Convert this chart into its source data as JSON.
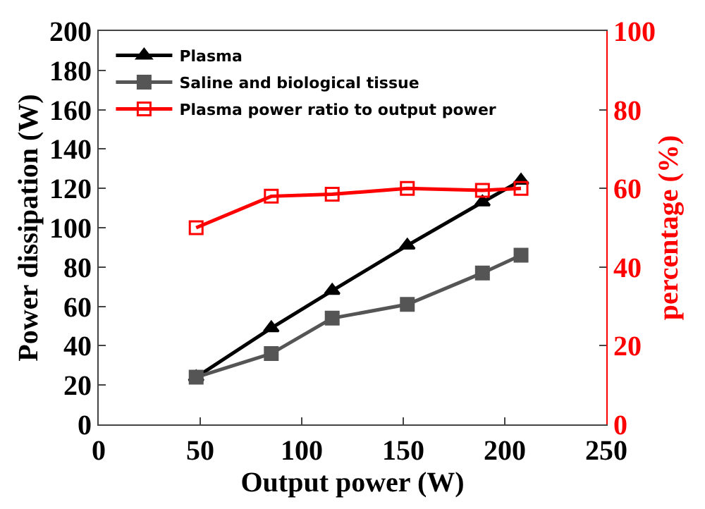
{
  "chart_data": {
    "type": "line",
    "xlabel": "Output power (W)",
    "ylabel": "Power dissipation (W)",
    "y2label": "percentage (%)",
    "x": [
      48,
      85,
      115,
      152,
      189,
      208
    ],
    "series": [
      {
        "name": "Plasma",
        "color": "#000000",
        "marker": "triangle",
        "values": [
          24,
          49,
          68,
          91,
          113,
          124
        ]
      },
      {
        "name": "Saline and biological tissue",
        "color": "#555555",
        "marker": "square",
        "values": [
          24,
          36,
          54,
          61,
          77,
          86
        ]
      },
      {
        "name": "Plasma power ratio to output power",
        "color": "#ff0000",
        "marker": "square-open",
        "axis": "y2",
        "values": [
          50,
          58,
          58.5,
          60,
          59.5,
          60
        ]
      }
    ],
    "xlim": [
      0,
      250
    ],
    "xticks": [
      0,
      50,
      100,
      150,
      200,
      250
    ],
    "ylim": [
      0,
      200
    ],
    "yticks": [
      0,
      20,
      40,
      60,
      80,
      100,
      120,
      140,
      160,
      180,
      200
    ],
    "y2lim": [
      0,
      100
    ],
    "y2ticks": [
      0,
      20,
      40,
      60,
      80,
      100
    ],
    "legend": "top left"
  }
}
